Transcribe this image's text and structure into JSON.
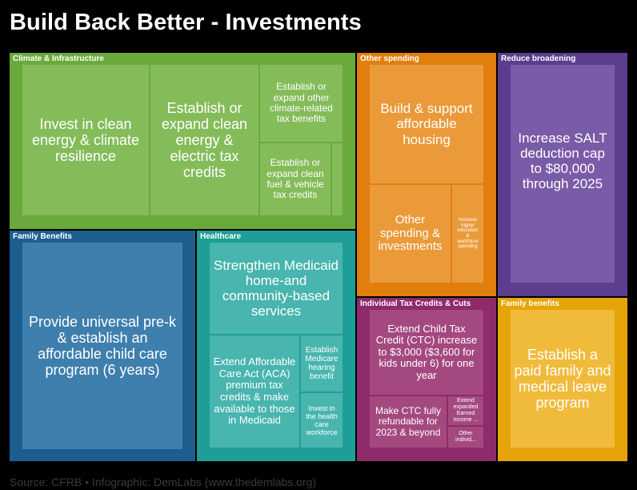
{
  "title": "Build Back Better - Investments",
  "footer": "Source: CFRB • Infographic: DemLabs (www.thedemlabs.org)",
  "chart_data": {
    "type": "treemap",
    "groups": [
      {
        "name": "Climate & Infrastructure",
        "color": "#6aaa3c",
        "tile_color": "#84bc5a",
        "items": [
          {
            "label": "Invest in clean energy & climate resilience"
          },
          {
            "label": "Establish or expand clean energy & electric tax credits"
          },
          {
            "label": "Establish or expand other climate-related tax benefits"
          },
          {
            "label": "Establish or expand clean fuel & vehicle tax credits"
          },
          {
            "label": ""
          }
        ]
      },
      {
        "name": "Other spending",
        "color": "#e07e0e",
        "tile_color": "#eb9a3a",
        "items": [
          {
            "label": "Build & support affordable housing"
          },
          {
            "label": "Other spending & investments"
          },
          {
            "label": "Increase higher education & workforce spending"
          }
        ]
      },
      {
        "name": "Reduce broadening",
        "color": "#5d3d8e",
        "tile_color": "#7a5ba8",
        "items": [
          {
            "label": "Increase SALT deduction cap to $80,000 through 2025"
          }
        ]
      },
      {
        "name": "Family Benefits",
        "color": "#1c5f8f",
        "tile_color": "#3e7fae",
        "items": [
          {
            "label": "Provide universal pre-k & establish an affordable child care program (6 years)"
          }
        ]
      },
      {
        "name": "Healthcare",
        "color": "#1e9e96",
        "tile_color": "#48b5ae",
        "items": [
          {
            "label": "Strengthen Medicaid home-and community-based services"
          },
          {
            "label": "Extend Affordable Care Act (ACA) premium tax credits & make available to those in Medicaid"
          },
          {
            "label": "Establish Medicare hearing benefit"
          },
          {
            "label": "Invest in the health care workforce"
          }
        ]
      },
      {
        "name": "Individual Tax Credits & Cuts",
        "color": "#8e2b6a",
        "tile_color": "#a4497f",
        "items": [
          {
            "label": "Extend Child Tax Credit (CTC) increase to $3,000 ($3,600 for kids under 6) for one year"
          },
          {
            "label": "Make CTC fully refundable for 2023 & beyond"
          },
          {
            "label": "Extend expanded Earned Income ..."
          },
          {
            "label": "Other individ..."
          }
        ]
      },
      {
        "name": "Family benefits",
        "color": "#e5a50a",
        "tile_color": "#f0bb3a",
        "items": [
          {
            "label": "Establish a paid family and medical leave program"
          }
        ]
      }
    ]
  }
}
